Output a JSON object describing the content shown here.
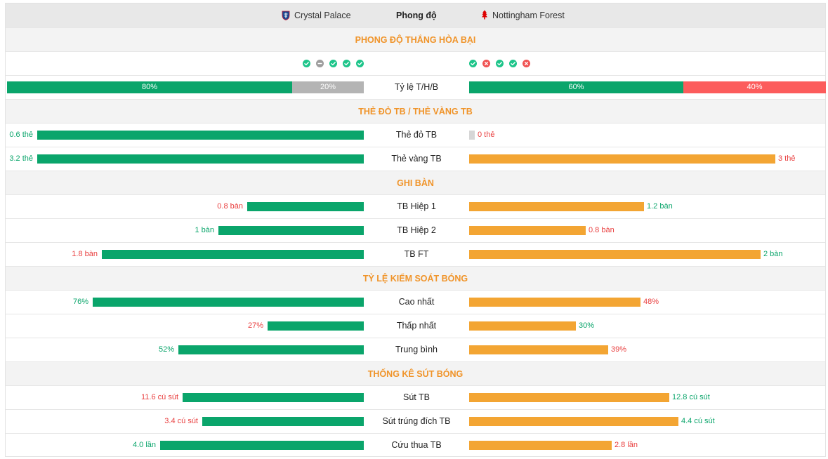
{
  "header": {
    "home_team": "Crystal Palace",
    "center_title": "Phong độ",
    "away_team": "Nottingham Forest"
  },
  "colors": {
    "win": "#1ec58a",
    "draw": "#9e9e9e",
    "loss": "#f05454",
    "home_bar": "#0aa56b",
    "away_bar": "#f3a533",
    "section_title": "#f0942a"
  },
  "sections": {
    "form": "PHONG ĐỘ THẮNG HÒA BẠI",
    "cards": "THẺ ĐỎ TB / THẺ VÀNG TB",
    "goals": "GHI BÀN",
    "possession": "TỶ LỆ KIỂM SOÁT BÓNG",
    "shots": "THỐNG KÊ SÚT BÓNG"
  },
  "form": {
    "home": [
      "win",
      "draw",
      "win",
      "win",
      "win"
    ],
    "away": [
      "win",
      "loss",
      "win",
      "win",
      "loss"
    ]
  },
  "whl": {
    "label": "Tỷ lệ T/H/B",
    "home": {
      "win_pct": 80,
      "draw_pct": 20,
      "loss_pct": 0,
      "win_text": "80%",
      "draw_text": "20%"
    },
    "away": {
      "win_pct": 60,
      "draw_pct": 0,
      "loss_pct": 40,
      "win_text": "60%",
      "loss_text": "40%"
    }
  },
  "cards": {
    "red": {
      "label": "Thẻ đỏ TB",
      "home_value": 0.6,
      "away_value": 0,
      "home_text": "0.6 thẻ",
      "away_text": "0 thẻ"
    },
    "yellow": {
      "label": "Thẻ vàng TB",
      "home_value": 3.2,
      "away_value": 3,
      "home_text": "3.2 thẻ",
      "away_text": "3 thẻ"
    }
  },
  "goals": {
    "h1": {
      "label": "TB Hiệp 1",
      "home_value": 0.8,
      "away_value": 1.2,
      "home_text": "0.8 bàn",
      "away_text": "1.2 bàn"
    },
    "h2": {
      "label": "TB Hiệp 2",
      "home_value": 1,
      "away_value": 0.8,
      "home_text": "1 bàn",
      "away_text": "0.8 bàn"
    },
    "ft": {
      "label": "TB FT",
      "home_value": 1.8,
      "away_value": 2,
      "home_text": "1.8 bàn",
      "away_text": "2 bàn"
    }
  },
  "possession": {
    "max": {
      "label": "Cao nhất",
      "home_value": 76,
      "away_value": 48,
      "home_text": "76%",
      "away_text": "48%"
    },
    "min": {
      "label": "Thấp nhất",
      "home_value": 27,
      "away_value": 30,
      "home_text": "27%",
      "away_text": "30%"
    },
    "avg": {
      "label": "Trung bình",
      "home_value": 52,
      "away_value": 39,
      "home_text": "52%",
      "away_text": "39%"
    }
  },
  "shots": {
    "total": {
      "label": "Sút TB",
      "home_value": 11.6,
      "away_value": 12.8,
      "home_text": "11.6 cú sút",
      "away_text": "12.8 cú sút"
    },
    "on_target": {
      "label": "Sút trúng đích TB",
      "home_value": 3.4,
      "away_value": 4.4,
      "home_text": "3.4 cú sút",
      "away_text": "4.4 cú sút"
    },
    "saves": {
      "label": "Cứu thua TB",
      "home_value": 4.0,
      "away_value": 2.8,
      "home_text": "4.0 lần",
      "away_text": "2.8 lần"
    }
  }
}
